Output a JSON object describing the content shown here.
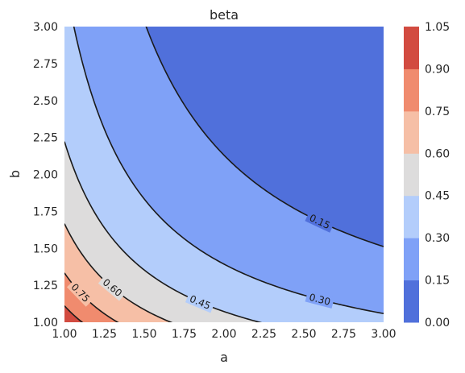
{
  "chart_data": {
    "type": "contour",
    "title": "beta",
    "xlabel": "a",
    "ylabel": "b",
    "xlim": [
      1.0,
      3.0
    ],
    "ylim": [
      1.0,
      3.0
    ],
    "x_ticks": [
      "1.00",
      "1.25",
      "1.50",
      "1.75",
      "2.00",
      "2.25",
      "2.50",
      "2.75",
      "3.00"
    ],
    "y_ticks": [
      "1.00",
      "1.25",
      "1.50",
      "1.75",
      "2.00",
      "2.25",
      "2.50",
      "2.75",
      "3.00"
    ],
    "levels": [
      0.0,
      0.15,
      0.3,
      0.45,
      0.6,
      0.75,
      0.9,
      1.05
    ],
    "colorbar_ticks": [
      "0.00",
      "0.15",
      "0.30",
      "0.45",
      "0.60",
      "0.75",
      "0.90",
      "1.05"
    ],
    "band_colors": [
      "#5070db",
      "#7fa1f7",
      "#b3cdfb",
      "#dddcdc",
      "#f6bfa6",
      "#f08b6e",
      "#d24b40"
    ],
    "line_color": "#1a1a1a",
    "contour_labels": [
      {
        "text": "0.15",
        "level": 0.15,
        "x": 2.6
      },
      {
        "text": "0.30",
        "level": 0.3,
        "x": 2.6
      },
      {
        "text": "0.45",
        "level": 0.45,
        "x": 1.85
      },
      {
        "text": "0.60",
        "level": 0.6,
        "x": 1.3
      },
      {
        "text": "0.75",
        "level": 0.75,
        "x": 1.1
      }
    ],
    "grid": false,
    "colorbar": "right"
  }
}
